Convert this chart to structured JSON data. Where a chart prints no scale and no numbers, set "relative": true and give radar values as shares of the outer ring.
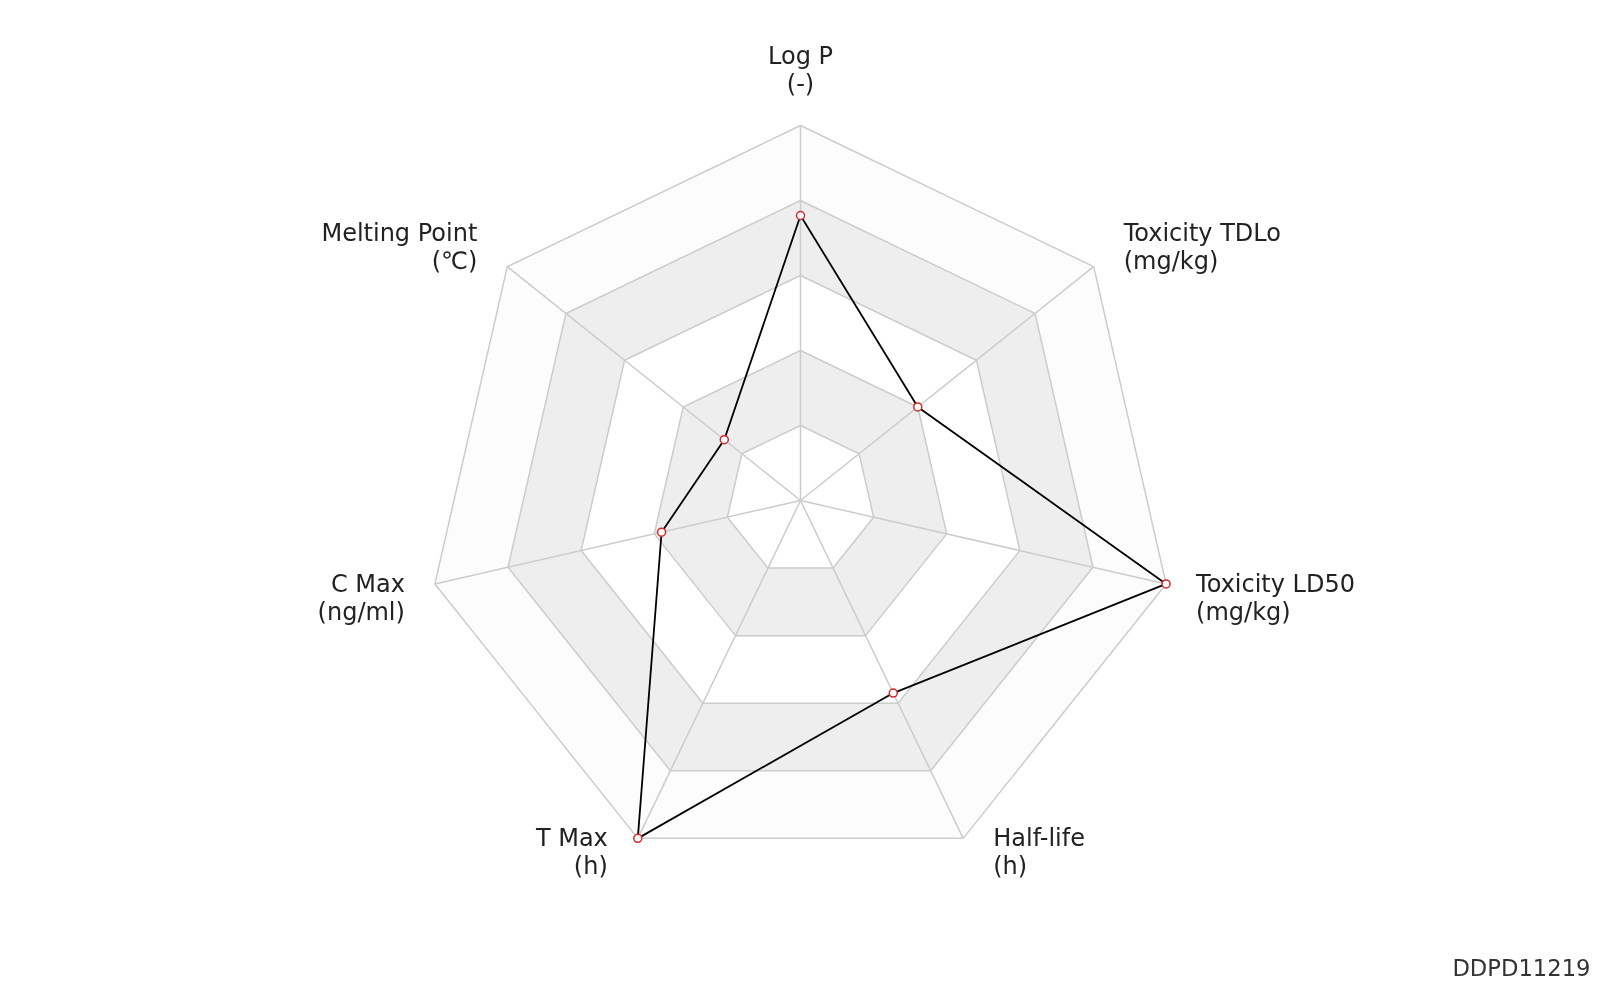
{
  "chart_data": {
    "type": "radar",
    "categories": [
      "Log P\n(-)",
      "Toxicity TDLo\n(mg/kg)",
      "Toxicity LD50\n(mg/kg)",
      "Half-life\n(h)",
      "T Max\n(h)",
      "C Max\n(ng/ml)",
      "Melting Point\n(℃)"
    ],
    "series": [
      {
        "color": "#000000",
        "values": [
          0.76,
          0.4,
          1.0,
          0.57,
          1.0,
          0.38,
          0.26
        ]
      }
    ],
    "relative": true,
    "grid": true,
    "marker": "circle",
    "annotations": [
      "DDPD11219"
    ]
  }
}
